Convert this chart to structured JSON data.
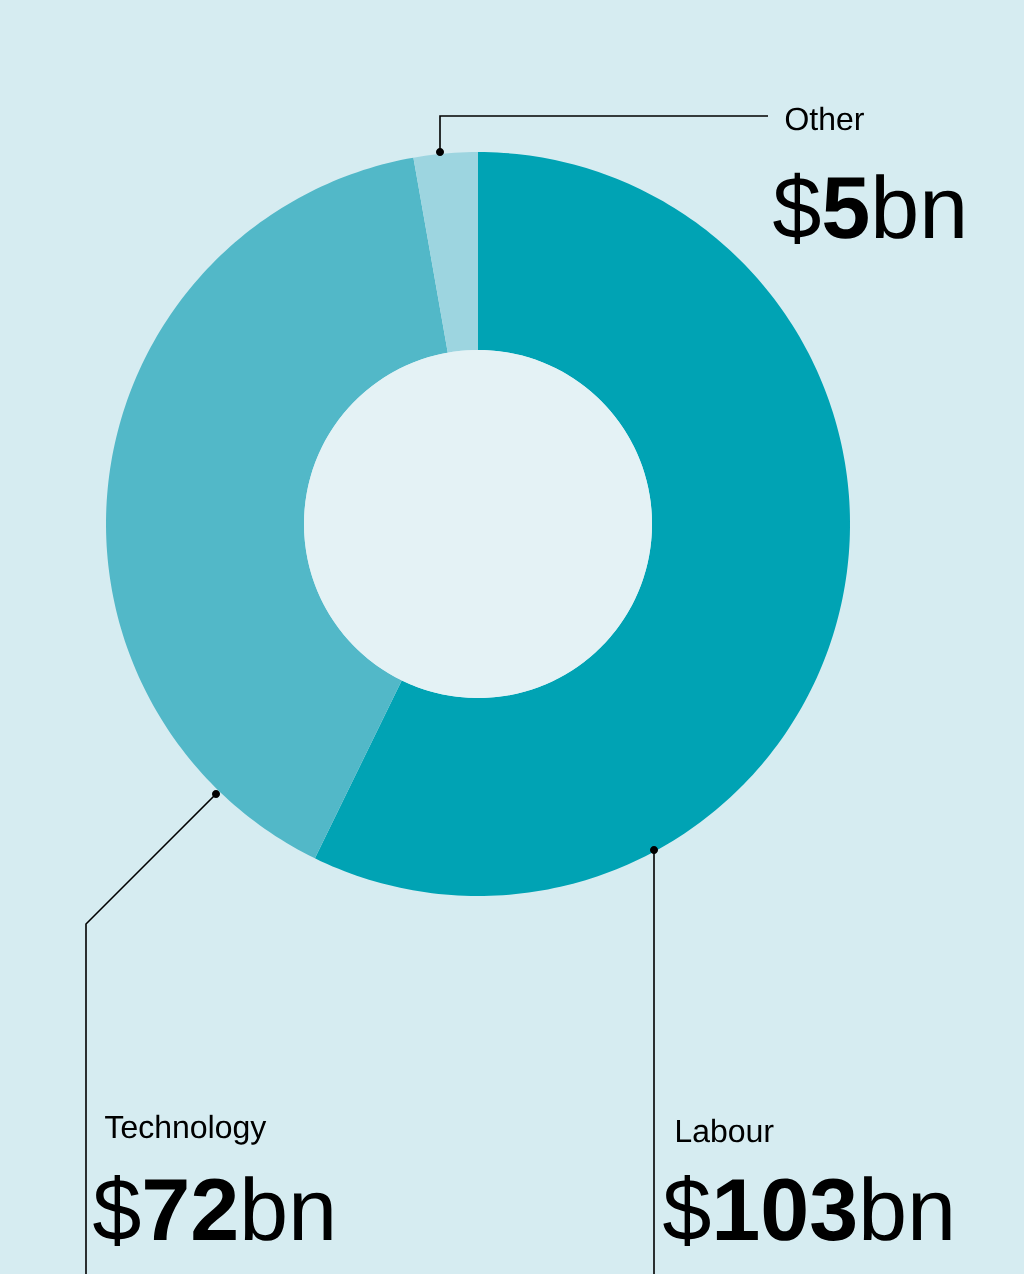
{
  "chart_data": {
    "type": "donut",
    "categories": [
      "Labour",
      "Technology",
      "Other"
    ],
    "values": [
      103,
      72,
      5
    ],
    "colors": [
      "#00a3b4",
      "#52b8c8",
      "#9dd5e0"
    ],
    "value_labels": [
      "$**103**bn",
      "$**72**bn",
      "$**5**bn"
    ]
  }
}
